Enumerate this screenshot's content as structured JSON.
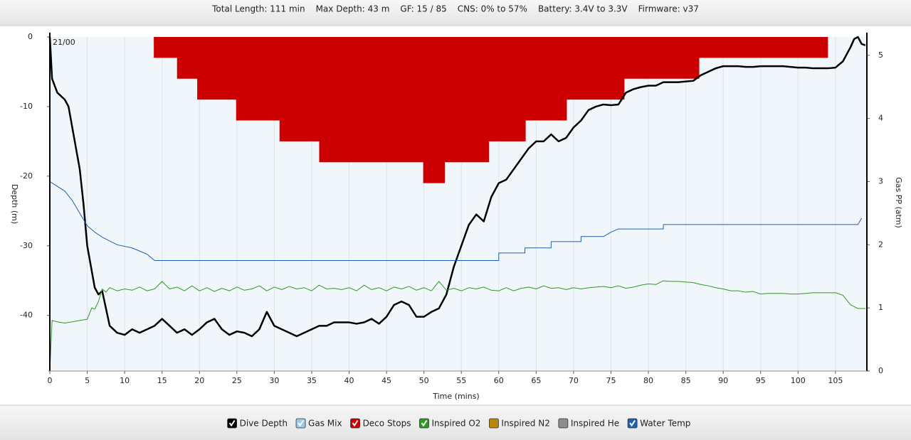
{
  "header": {
    "items": [
      "Total Length: 111 min",
      "Max Depth: 43 m",
      "GF: 15 / 85",
      "CNS: 0% to 57%",
      "Battery: 3.4V to 3.3V",
      "Firmware: v37"
    ]
  },
  "chart_data": {
    "type": "line",
    "xlabel": "Time (mins)",
    "ylabel": "Depth (m)",
    "y2label": "Gas PP (atm)",
    "xlim": [
      0,
      109.2
    ],
    "xticks": [
      0,
      5,
      10,
      15,
      20,
      25,
      30,
      35,
      40,
      45,
      50,
      55,
      60,
      65,
      70,
      75,
      80,
      85,
      90,
      95,
      100,
      105
    ],
    "ylim": [
      -48,
      0
    ],
    "yticks": [
      0,
      -10,
      -20,
      -30,
      -40
    ],
    "y2lim": [
      0,
      5.29
    ],
    "y2ticks": [
      0,
      1,
      2,
      3,
      4,
      5
    ],
    "grid": "x",
    "series": [
      {
        "name": "Dive Depth",
        "color": "#000000",
        "checked": true,
        "axis": "y",
        "style": "line",
        "x": [
          0,
          0.3,
          1,
          2,
          2.5,
          3,
          4,
          4.5,
          5,
          5.5,
          6,
          6.5,
          7,
          7.5,
          8,
          9,
          10,
          11,
          12,
          13,
          14,
          15,
          16,
          17,
          18,
          19,
          20,
          21,
          22,
          23,
          24,
          25,
          26,
          27,
          28,
          29,
          30,
          31,
          32,
          33,
          34,
          35,
          36,
          37,
          38,
          39,
          40,
          41,
          42,
          43,
          44,
          45,
          46,
          47,
          48,
          49,
          50,
          51,
          52,
          53,
          54,
          55,
          56,
          57,
          58,
          59,
          60,
          61,
          62,
          63,
          64,
          65,
          66,
          67,
          68,
          69,
          70,
          71,
          72,
          73,
          74,
          75,
          76,
          77,
          78,
          79,
          80,
          81,
          82,
          83,
          84,
          85,
          86,
          87,
          88,
          89,
          90,
          91,
          92,
          93,
          94,
          95,
          96,
          97,
          98,
          99,
          100,
          101,
          102,
          103,
          104,
          105,
          106,
          107,
          107.5,
          108,
          108.5,
          109
        ],
        "values": [
          0,
          -6,
          -8,
          -9,
          -10,
          -13,
          -19,
          -24,
          -30,
          -33,
          -36,
          -37,
          -36.5,
          -39,
          -41.5,
          -42.5,
          -42.8,
          -42,
          -42.5,
          -42,
          -41.5,
          -40.5,
          -41.5,
          -42.5,
          -42,
          -42.8,
          -42,
          -41,
          -40.5,
          -42,
          -42.8,
          -42.3,
          -42.5,
          -43,
          -42,
          -39.5,
          -41.5,
          -42,
          -42.5,
          -43,
          -42.5,
          -42,
          -41.5,
          -41.5,
          -41,
          -41,
          -41,
          -41.2,
          -41,
          -40.5,
          -41.2,
          -40.2,
          -38.5,
          -38,
          -38.5,
          -40.2,
          -40.2,
          -39.5,
          -39,
          -37,
          -33,
          -30,
          -27,
          -25.5,
          -26.5,
          -23,
          -21,
          -20.5,
          -19,
          -17.5,
          -16,
          -15,
          -15,
          -14,
          -15,
          -14.5,
          -13,
          -12,
          -10.5,
          -10,
          -9.7,
          -9.8,
          -9.7,
          -8,
          -7.5,
          -7.2,
          -7,
          -7,
          -6.5,
          -6.5,
          -6.5,
          -6.4,
          -6.3,
          -5.5,
          -5,
          -4.5,
          -4.2,
          -4.2,
          -4.2,
          -4.3,
          -4.3,
          -4.2,
          -4.2,
          -4.2,
          -4.2,
          -4.3,
          -4.4,
          -4.4,
          -4.5,
          -4.5,
          -4.5,
          -4.4,
          -3.5,
          -1.5,
          -0.3,
          0,
          -1,
          -1.2
        ]
      },
      {
        "name": "Gas Mix",
        "color": "#9cc8ea",
        "checked": true,
        "axis": "y",
        "style": "label",
        "x": [
          0
        ],
        "labels": [
          "21/00"
        ]
      },
      {
        "name": "Deco Stops",
        "color": "#cc0000",
        "checked": true,
        "axis": "y",
        "style": "area",
        "x": [
          13.9,
          17.0,
          17.0,
          19.7,
          19.7,
          24.9,
          24.9,
          30.7,
          30.7,
          36.0,
          36.0,
          49.9,
          49.9,
          52.8,
          52.8,
          58.7,
          58.7,
          63.6,
          63.6,
          69.1,
          69.1,
          76.8,
          76.8,
          86.8,
          86.8,
          104.0
        ],
        "values": [
          -3,
          -3,
          -6,
          -6,
          -9,
          -9,
          -12,
          -12,
          -15,
          -15,
          -18,
          -18,
          -21,
          -21,
          -18,
          -18,
          -15,
          -15,
          -12,
          -12,
          -9,
          -9,
          -6,
          -6,
          -3,
          -3
        ]
      },
      {
        "name": "Inspired O2",
        "color": "#2e9a22",
        "checked": true,
        "axis": "y2",
        "style": "line",
        "x": [
          0,
          0.3,
          1,
          2,
          3,
          4,
          5,
          5.6,
          6,
          6.5,
          7,
          7.5,
          8,
          9,
          10,
          11,
          12,
          13,
          14,
          15,
          16,
          17,
          18,
          19,
          20,
          21,
          22,
          23,
          24,
          25,
          26,
          27,
          28,
          29,
          30,
          31,
          32,
          33,
          34,
          35,
          36,
          37,
          38,
          39,
          40,
          41,
          42,
          43,
          44,
          45,
          46,
          47,
          48,
          49,
          50,
          51,
          52,
          53,
          54,
          55,
          56,
          57,
          58,
          59,
          60,
          61,
          62,
          63,
          64,
          65,
          66,
          67,
          68,
          69,
          70,
          71,
          72,
          73,
          74,
          75,
          76,
          77,
          78,
          79,
          80,
          81,
          82,
          83,
          84,
          85,
          86,
          87,
          88,
          89,
          90,
          91,
          92,
          93,
          94,
          95,
          96,
          97,
          98,
          99,
          100,
          101,
          102,
          103,
          104,
          105,
          106,
          107,
          108,
          109
        ],
        "values": [
          0,
          0.8,
          0.78,
          0.76,
          0.78,
          0.8,
          0.82,
          1.0,
          0.98,
          1.1,
          1.3,
          1.25,
          1.32,
          1.27,
          1.3,
          1.28,
          1.33,
          1.27,
          1.3,
          1.42,
          1.3,
          1.33,
          1.27,
          1.35,
          1.27,
          1.32,
          1.26,
          1.31,
          1.27,
          1.33,
          1.28,
          1.3,
          1.35,
          1.27,
          1.33,
          1.29,
          1.34,
          1.3,
          1.32,
          1.27,
          1.36,
          1.3,
          1.31,
          1.29,
          1.32,
          1.27,
          1.36,
          1.29,
          1.32,
          1.27,
          1.33,
          1.3,
          1.34,
          1.28,
          1.32,
          1.27,
          1.42,
          1.28,
          1.31,
          1.27,
          1.32,
          1.3,
          1.33,
          1.28,
          1.27,
          1.32,
          1.27,
          1.31,
          1.33,
          1.3,
          1.35,
          1.31,
          1.32,
          1.29,
          1.32,
          1.3,
          1.32,
          1.33,
          1.34,
          1.32,
          1.35,
          1.31,
          1.33,
          1.36,
          1.38,
          1.37,
          1.43,
          1.42,
          1.42,
          1.41,
          1.4,
          1.37,
          1.35,
          1.32,
          1.3,
          1.27,
          1.27,
          1.25,
          1.26,
          1.22,
          1.23,
          1.23,
          1.23,
          1.22,
          1.22,
          1.23,
          1.24,
          1.24,
          1.24,
          1.24,
          1.2,
          1.05,
          0.99,
          0.99
        ]
      },
      {
        "name": "Inspired N2",
        "color": "#b8860b",
        "checked": false,
        "axis": "y2",
        "style": "line",
        "x": [],
        "values": []
      },
      {
        "name": "Inspired He",
        "color": "#8c8c8c",
        "checked": false,
        "axis": "y2",
        "style": "line",
        "x": [],
        "values": []
      },
      {
        "name": "Water Temp",
        "color": "#1f5fb0",
        "checked": true,
        "axis": "y2",
        "style": "line",
        "x": [
          0,
          2,
          3,
          4,
          5,
          6,
          7,
          9,
          11,
          13,
          14,
          60,
          60,
          63.5,
          63.5,
          67,
          67,
          71,
          71,
          74,
          75,
          76,
          82,
          82,
          108,
          108.5
        ],
        "values": [
          3.0,
          2.85,
          2.7,
          2.5,
          2.3,
          2.2,
          2.12,
          2.0,
          1.95,
          1.85,
          1.75,
          1.75,
          1.87,
          1.87,
          1.95,
          1.95,
          2.05,
          2.05,
          2.13,
          2.13,
          2.2,
          2.25,
          2.25,
          2.32,
          2.32,
          2.42
        ]
      }
    ]
  }
}
